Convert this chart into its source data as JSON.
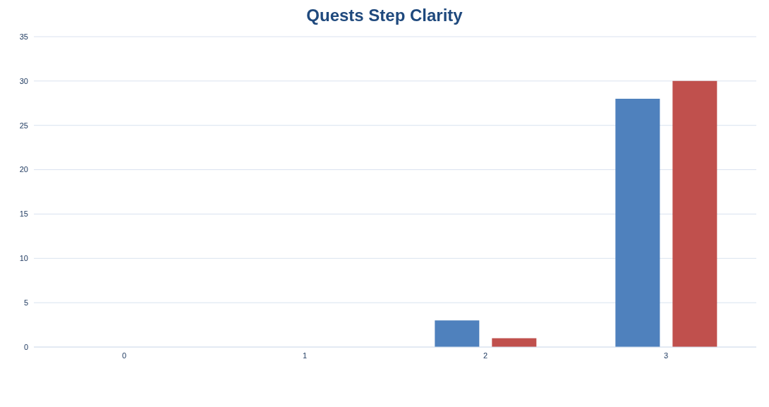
{
  "chart_data": {
    "type": "bar",
    "title": "Quests Step Clarity",
    "categories": [
      "0",
      "1",
      "2",
      "3"
    ],
    "series": [
      {
        "color": "#4f81bd",
        "values": [
          0,
          0,
          3,
          28
        ]
      },
      {
        "color": "#c0504d",
        "values": [
          0,
          0,
          1,
          30
        ]
      }
    ],
    "ylim": [
      0,
      35
    ],
    "yticks": [
      0,
      5,
      10,
      15,
      20,
      25,
      30,
      35
    ],
    "grid": "y"
  }
}
